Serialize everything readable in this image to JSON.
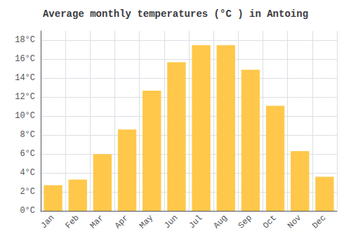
{
  "chart_data": {
    "type": "bar",
    "title": "Average monthly temperatures (°C ) in Antoing",
    "categories": [
      "Jan",
      "Feb",
      "Mar",
      "Apr",
      "May",
      "Jun",
      "Jul",
      "Aug",
      "Sep",
      "Oct",
      "Nov",
      "Dec"
    ],
    "values": [
      2.7,
      3.3,
      6.0,
      8.6,
      12.7,
      15.7,
      17.5,
      17.5,
      14.9,
      11.1,
      6.3,
      3.6
    ],
    "color": "#FFC84A",
    "ylim": [
      0,
      19
    ],
    "yticks": [
      {
        "value": 0,
        "label": "0°C"
      },
      {
        "value": 2,
        "label": "2°C"
      },
      {
        "value": 4,
        "label": "4°C"
      },
      {
        "value": 6,
        "label": "6°C"
      },
      {
        "value": 8,
        "label": "8°C"
      },
      {
        "value": 10,
        "label": "10°C"
      },
      {
        "value": 12,
        "label": "12°C"
      },
      {
        "value": 14,
        "label": "14°C"
      },
      {
        "value": 16,
        "label": "16°C"
      },
      {
        "value": 18,
        "label": "18°C"
      }
    ],
    "grid": true
  }
}
